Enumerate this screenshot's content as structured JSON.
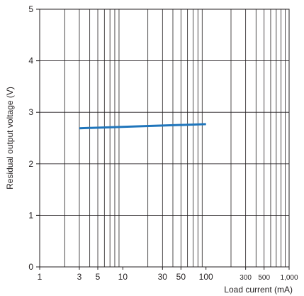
{
  "chart_data": {
    "type": "line",
    "title": "",
    "xlabel": "Load current (mA)",
    "ylabel": "Residual output voltage (V)",
    "xscale": "log",
    "xlim": [
      1,
      1000
    ],
    "ylim": [
      0,
      5
    ],
    "grid": true,
    "x_ticks": [
      {
        "value": 1,
        "label": "1"
      },
      {
        "value": 3,
        "label": "3"
      },
      {
        "value": 5,
        "label": "5"
      },
      {
        "value": 10,
        "label": "10"
      },
      {
        "value": 30,
        "label": "30"
      },
      {
        "value": 50,
        "label": "50"
      },
      {
        "value": 100,
        "label": "100"
      },
      {
        "value": 300,
        "label": "300"
      },
      {
        "value": 500,
        "label": "500"
      },
      {
        "value": 1000,
        "label": "1,000"
      }
    ],
    "y_ticks": [
      {
        "value": 0,
        "label": "0"
      },
      {
        "value": 1,
        "label": "1"
      },
      {
        "value": 2,
        "label": "2"
      },
      {
        "value": 3,
        "label": "3"
      },
      {
        "value": 4,
        "label": "4"
      },
      {
        "value": 5,
        "label": "5"
      }
    ],
    "series": [
      {
        "color": "#1f75bb",
        "x": [
          3,
          100
        ],
        "y": [
          2.69,
          2.77
        ]
      }
    ]
  }
}
